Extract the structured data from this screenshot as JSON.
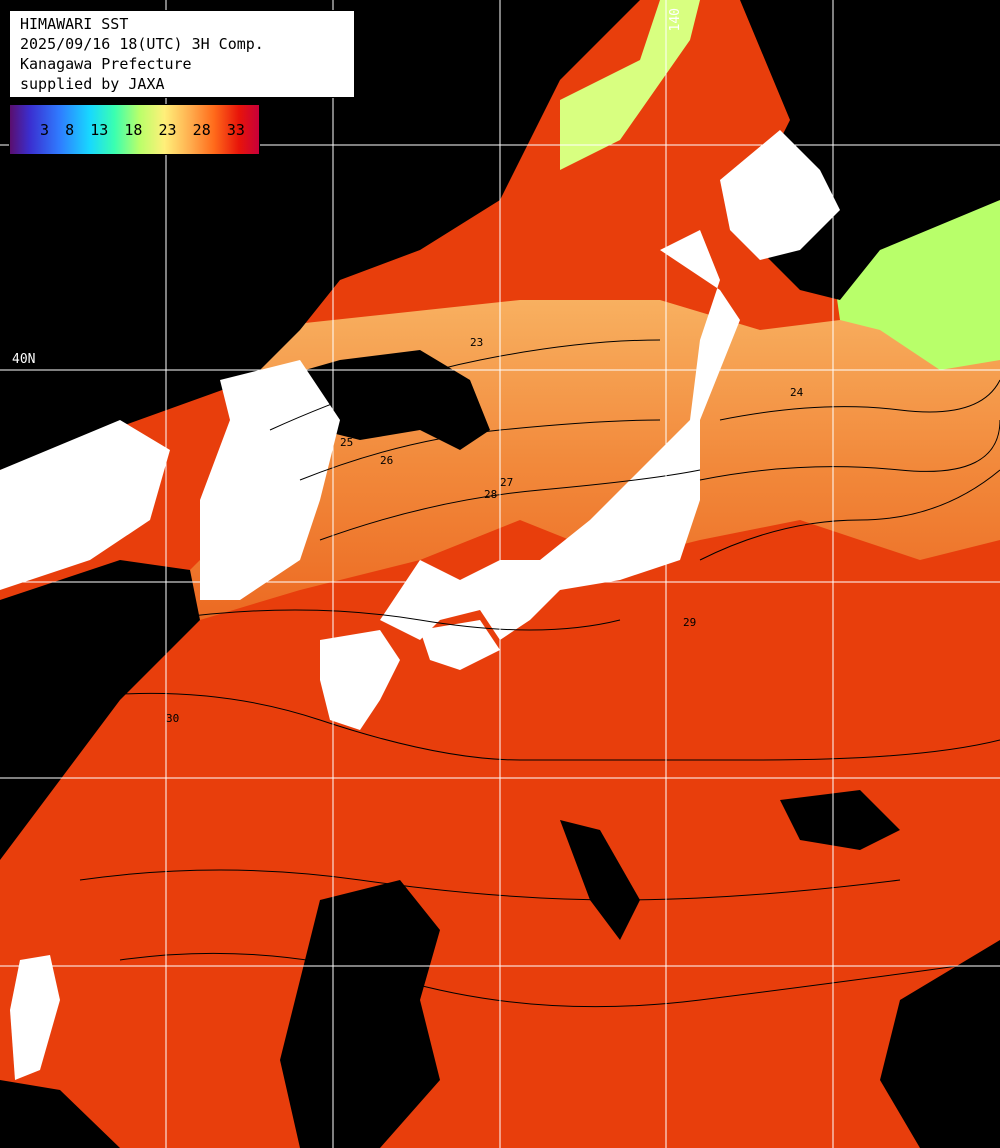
{
  "title": {
    "line1": "HIMAWARI SST",
    "line2": "2025/09/16 18(UTC) 3H Comp.",
    "line3": "Kanagawa Prefecture",
    "line4": "supplied by JAXA"
  },
  "scale": {
    "labels": [
      "3",
      "8",
      "13",
      "18",
      "23",
      "28",
      "33"
    ],
    "unit": ""
  },
  "grid": {
    "lat_label": "40N",
    "lon_label": "140"
  },
  "contours": [
    "23",
    "24",
    "25",
    "26",
    "27",
    "28",
    "29",
    "30"
  ],
  "colors": {
    "land": "#000000",
    "cloud_mask": "#ffffff",
    "warm_sea": "#e8400c",
    "cool_sea": "#f58a3a",
    "cold_sea": "#9dff7a",
    "gridline": "#ffffff"
  }
}
